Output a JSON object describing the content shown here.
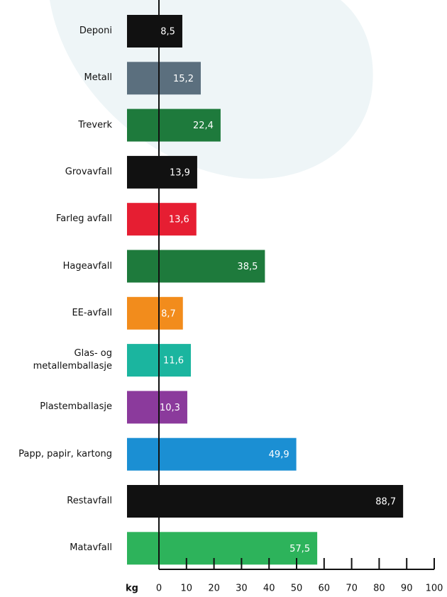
{
  "chart_data": {
    "type": "barh",
    "categories": [
      "Deponi",
      "Metall",
      "Treverk",
      "Grovavfall",
      "Farleg avfall",
      "Hageavfall",
      "EE-avfall",
      "Glas- og\nmetallemballasje",
      "Plastemballasje",
      "Papp, papir, kartong",
      "Restavfall",
      "Matavfall"
    ],
    "values": [
      8.5,
      15.2,
      22.4,
      13.9,
      13.6,
      38.5,
      8.7,
      11.6,
      10.3,
      49.9,
      88.7,
      57.5
    ],
    "value_labels": [
      "8,5",
      "15,2",
      "22,4",
      "13,9",
      "13,6",
      "38,5",
      "8,7",
      "11,6",
      "10,3",
      "49,9",
      "88,7",
      "57,5"
    ],
    "colors": [
      "#111111",
      "#5b6f7e",
      "#1e7a3c",
      "#111111",
      "#e61e32",
      "#1e7a3c",
      "#f28c1c",
      "#1bb59f",
      "#8b3a9c",
      "#1b8fd3",
      "#111111",
      "#2db35b"
    ],
    "xlabel": "kg",
    "xlim": [
      0,
      100
    ],
    "xticks": [
      0,
      10,
      20,
      30,
      40,
      50,
      60,
      70,
      80,
      90,
      100
    ]
  }
}
